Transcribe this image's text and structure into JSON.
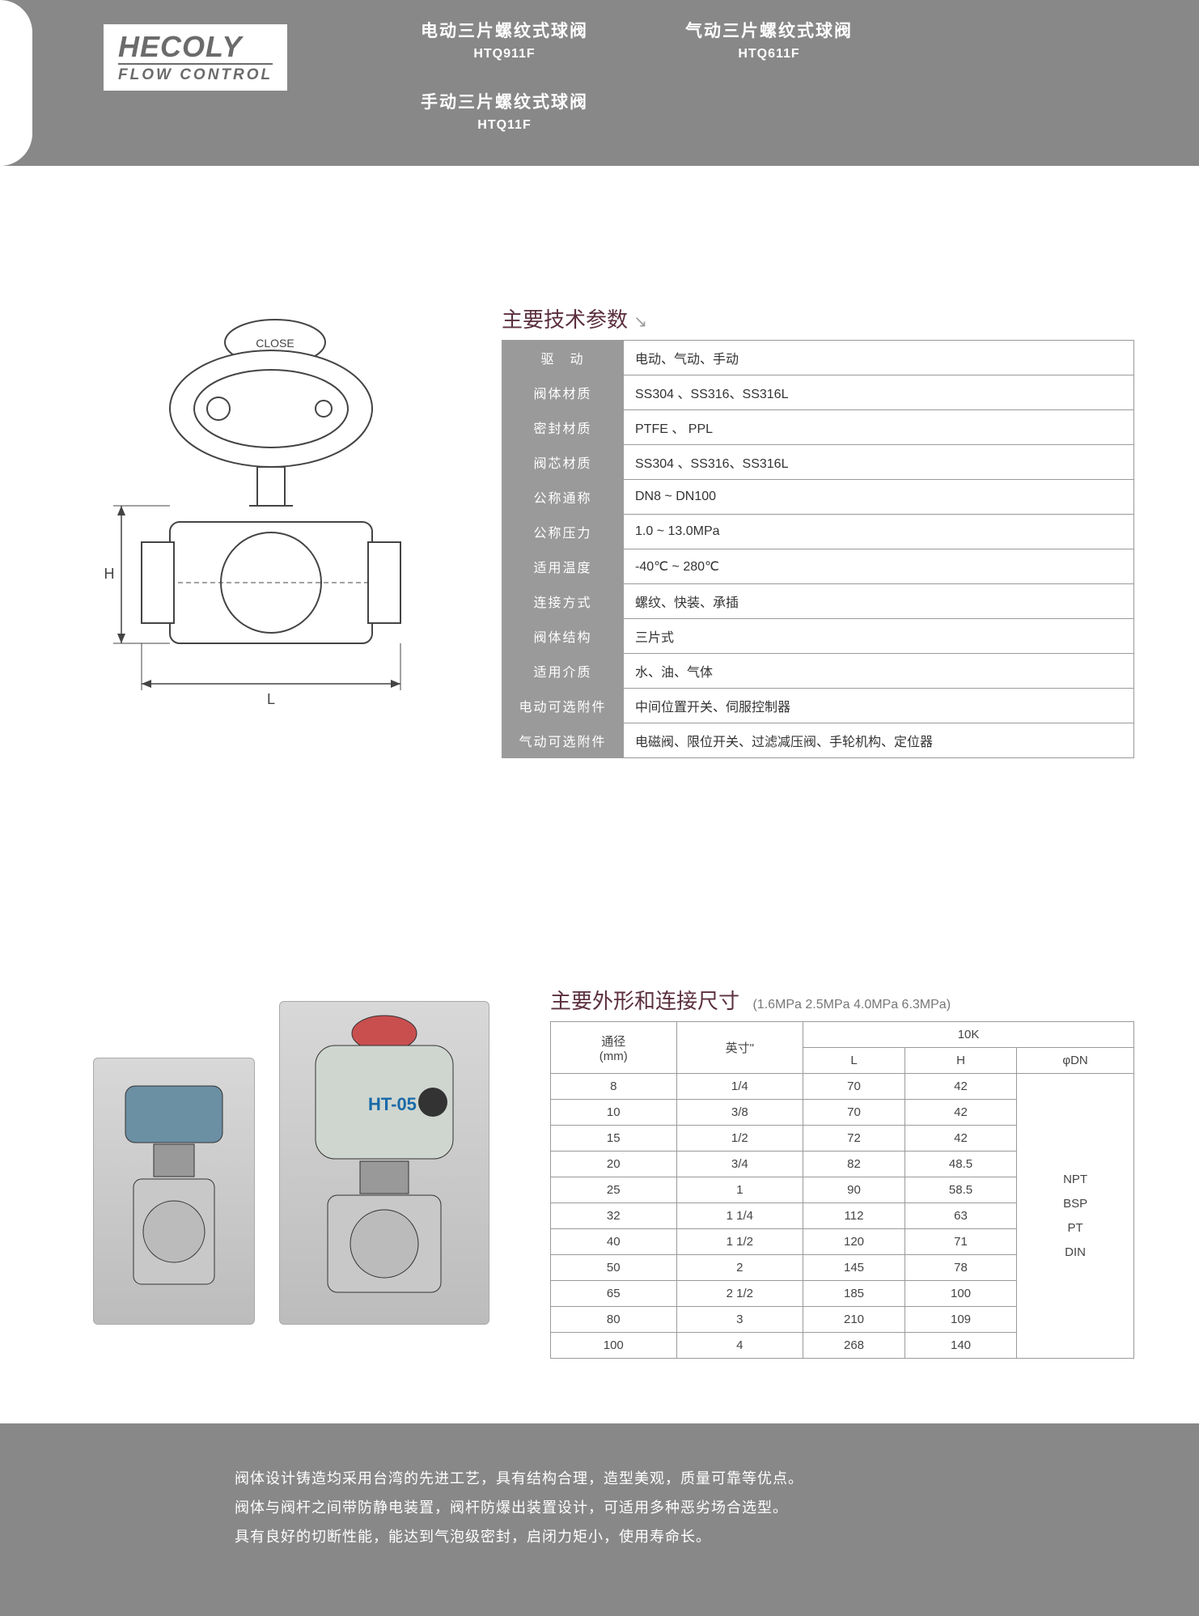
{
  "logo": {
    "main": "HECOLY",
    "sub": "FLOW CONTROL"
  },
  "products": [
    {
      "name": "电动三片螺纹式球阀",
      "code": "HTQ911F"
    },
    {
      "name": "气动三片螺纹式球阀",
      "code": "HTQ611F"
    },
    {
      "name": "手动三片螺纹式球阀",
      "code": "HTQ11F"
    }
  ],
  "diagram": {
    "close_label": "CLOSE",
    "dim_h": "H",
    "dim_l": "L"
  },
  "spec_title": "主要技术参数",
  "spec_rows": [
    {
      "label": "驱　动",
      "value": "电动、气动、手动"
    },
    {
      "label": "阀体材质",
      "value": "SS304 、SS316、SS316L"
    },
    {
      "label": "密封材质",
      "value": "PTFE 、 PPL"
    },
    {
      "label": "阀芯材质",
      "value": "SS304 、SS316、SS316L"
    },
    {
      "label": "公称通称",
      "value": "DN8 ~ DN100"
    },
    {
      "label": "公称压力",
      "value": "1.0 ~ 13.0MPa"
    },
    {
      "label": "适用温度",
      "value": "-40℃ ~ 280℃"
    },
    {
      "label": "连接方式",
      "value": "螺纹、快装、承插"
    },
    {
      "label": "阀体结构",
      "value": "三片式"
    },
    {
      "label": "适用介质",
      "value": "水、油、气体"
    },
    {
      "label": "电动可选附件",
      "value": "中间位置开关、伺服控制器"
    },
    {
      "label": "气动可选附件",
      "value": "电磁阀、限位开关、过滤减压阀、手轮机构、定位器"
    }
  ],
  "photo_label": "HT-05",
  "dim_title": "主要外形和连接尺寸",
  "dim_subtitle": "(1.6MPa  2.5MPa  4.0MPa  6.3MPa)",
  "dim_headers": {
    "diameter": "通径\n(mm)",
    "inch": "英寸\"",
    "pressure": "10K",
    "l": "L",
    "h": "H",
    "dn": "φDN"
  },
  "dim_rows": [
    {
      "mm": "8",
      "inch": "1/4",
      "l": "70",
      "h": "42"
    },
    {
      "mm": "10",
      "inch": "3/8",
      "l": "70",
      "h": "42"
    },
    {
      "mm": "15",
      "inch": "1/2",
      "l": "72",
      "h": "42"
    },
    {
      "mm": "20",
      "inch": "3/4",
      "l": "82",
      "h": "48.5"
    },
    {
      "mm": "25",
      "inch": "1",
      "l": "90",
      "h": "58.5"
    },
    {
      "mm": "32",
      "inch": "1 1/4",
      "l": "112",
      "h": "63"
    },
    {
      "mm": "40",
      "inch": "1 1/2",
      "l": "120",
      "h": "71"
    },
    {
      "mm": "50",
      "inch": "2",
      "l": "145",
      "h": "78"
    },
    {
      "mm": "65",
      "inch": "2 1/2",
      "l": "185",
      "h": "100"
    },
    {
      "mm": "80",
      "inch": "3",
      "l": "210",
      "h": "109"
    },
    {
      "mm": "100",
      "inch": "4",
      "l": "268",
      "h": "140"
    }
  ],
  "thread_types": "NPT\nBSP\nPT\nDIN",
  "footer_lines": [
    "阀体设计铸造均采用台湾的先进工艺，具有结构合理，造型美观，质量可靠等优点。",
    "阀体与阀杆之间带防静电装置，阀杆防爆出装置设计，可适用多种恶劣场合选型。",
    "具有良好的切断性能，能达到气泡级密封，启闭力矩小，使用寿命长。"
  ],
  "colors": {
    "header_bg": "#888888",
    "title_color": "#5b2f3f",
    "border": "#9a9a9a",
    "label_bg": "#9a9a9a"
  }
}
